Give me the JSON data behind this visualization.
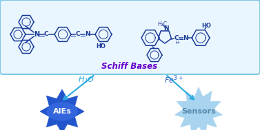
{
  "bg_color": "#ffffff",
  "box_edge_color": "#7ec8e3",
  "box_face_color": "#eaf6ff",
  "schiff_color": "#6600cc",
  "arrow_color": "#29abe2",
  "h2o_color": "#29abe2",
  "fe_color": "#2255bb",
  "struct_color": "#1a3a9a",
  "struct_lw": 1.1,
  "aies_spike_color": "#2255cc",
  "aies_ellipse_color": "#3366dd",
  "aies_text_color": "#ffffff",
  "sensors_color": "#a8d4f0",
  "sensors_text_color": "#5588aa",
  "title": "Schiff Bases",
  "label_h2o": "$H_2O$",
  "label_fe": "$Fe^{3+}$",
  "label_aies": "AIEs",
  "label_sensors": "Sensors"
}
